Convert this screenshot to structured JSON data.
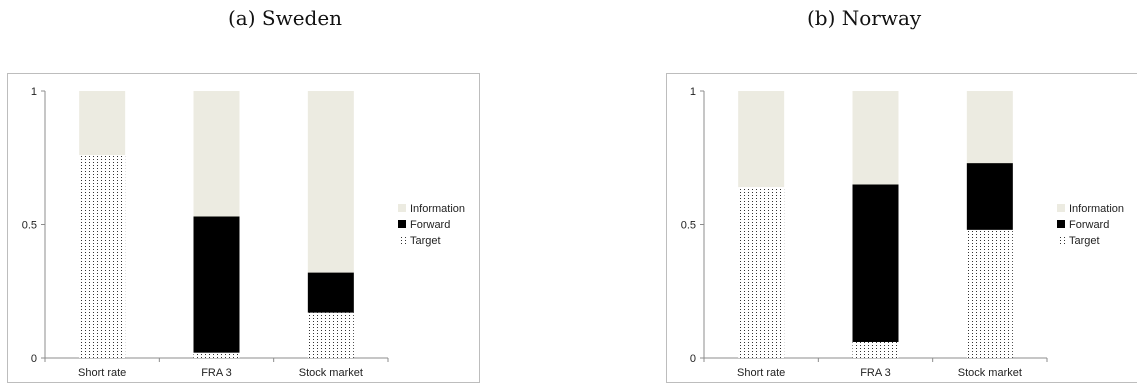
{
  "captions": {
    "a": "(a) Sweden",
    "b": "(b) Norway"
  },
  "colors": {
    "information": "#ecebe1",
    "forward": "#000000",
    "target_dot": "#333333",
    "axis": "#8c8c8c"
  },
  "chart_data": [
    {
      "type": "bar",
      "stacked": true,
      "title": "(a) Sweden",
      "categories": [
        "Short rate",
        "FRA 3",
        "Stock market"
      ],
      "series": [
        {
          "name": "Target",
          "values": [
            0.76,
            0.02,
            0.17
          ]
        },
        {
          "name": "Forward",
          "values": [
            0.0,
            0.51,
            0.15
          ]
        },
        {
          "name": "Information",
          "values": [
            0.24,
            0.47,
            0.68
          ]
        }
      ],
      "yticks": [
        "0",
        "0.5",
        "1"
      ],
      "ylim": [
        0,
        1
      ],
      "legend": {
        "position": "right",
        "order": [
          "Information",
          "Forward",
          "Target"
        ]
      },
      "grid": false
    },
    {
      "type": "bar",
      "stacked": true,
      "title": "(b) Norway",
      "categories": [
        "Short rate",
        "FRA 3",
        "Stock market"
      ],
      "series": [
        {
          "name": "Target",
          "values": [
            0.64,
            0.06,
            0.48
          ]
        },
        {
          "name": "Forward",
          "values": [
            0.0,
            0.59,
            0.25
          ]
        },
        {
          "name": "Information",
          "values": [
            0.36,
            0.35,
            0.27
          ]
        }
      ],
      "yticks": [
        "0",
        "0.5",
        "1"
      ],
      "ylim": [
        0,
        1
      ],
      "legend": {
        "position": "right",
        "order": [
          "Information",
          "Forward",
          "Target"
        ]
      },
      "grid": false
    }
  ]
}
